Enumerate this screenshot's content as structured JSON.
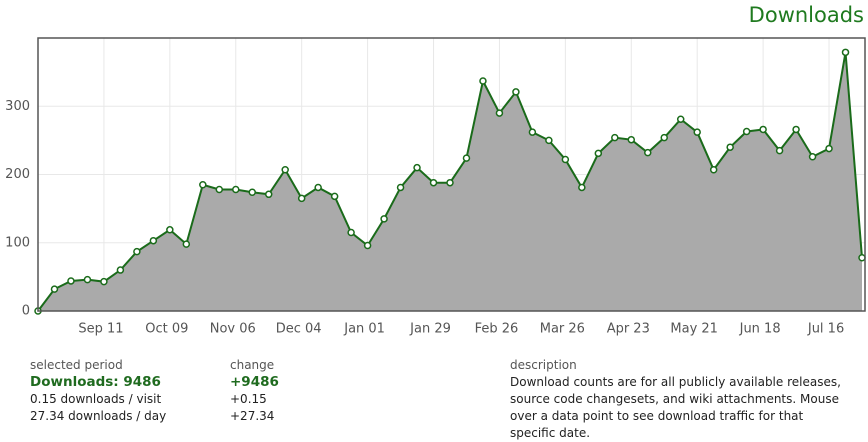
{
  "chart_data": {
    "type": "area",
    "title": "Downloads",
    "categories": [
      null,
      null,
      null,
      null,
      "Sep 11",
      null,
      null,
      null,
      "Oct 09",
      null,
      null,
      null,
      "Nov 06",
      null,
      null,
      null,
      "Dec 04",
      null,
      null,
      null,
      "Jan 01",
      null,
      null,
      null,
      "Jan 29",
      null,
      null,
      null,
      "Feb 26",
      null,
      null,
      null,
      "Mar 26",
      null,
      null,
      null,
      "Apr 23",
      null,
      null,
      null,
      "May 21",
      null,
      null,
      null,
      "Jun 18",
      null,
      null,
      null,
      "Jul 16",
      null,
      null
    ],
    "series": [
      {
        "name": "Downloads",
        "color": "#1a6b1a",
        "fill": "#aaaaaa",
        "values": [
          0,
          32,
          44,
          46,
          43,
          60,
          87,
          103,
          119,
          98,
          185,
          178,
          178,
          174,
          171,
          207,
          165,
          181,
          168,
          115,
          96,
          135,
          181,
          210,
          188,
          188,
          224,
          337,
          290,
          321,
          262,
          250,
          222,
          181,
          231,
          254,
          251,
          232,
          254,
          281,
          262,
          207,
          240,
          263,
          266,
          235,
          266,
          226,
          238,
          379,
          78
        ]
      }
    ],
    "ylim": [
      0,
      400
    ],
    "yticks": [
      0,
      100,
      200,
      300
    ],
    "grid": true
  },
  "summary": {
    "selected_period": {
      "heading": "selected period",
      "main": "Downloads: 9486",
      "lines": [
        "0.15 downloads / visit",
        "27.34 downloads / day"
      ]
    },
    "change": {
      "heading": "change",
      "main": "+9486",
      "lines": [
        "+0.15",
        "+27.34"
      ]
    },
    "description": {
      "heading": "description",
      "text": "Download counts are for all publicly available releases, source code changesets, and wiki attachments. Mouse over a data point to see download traffic for that specific date."
    }
  }
}
